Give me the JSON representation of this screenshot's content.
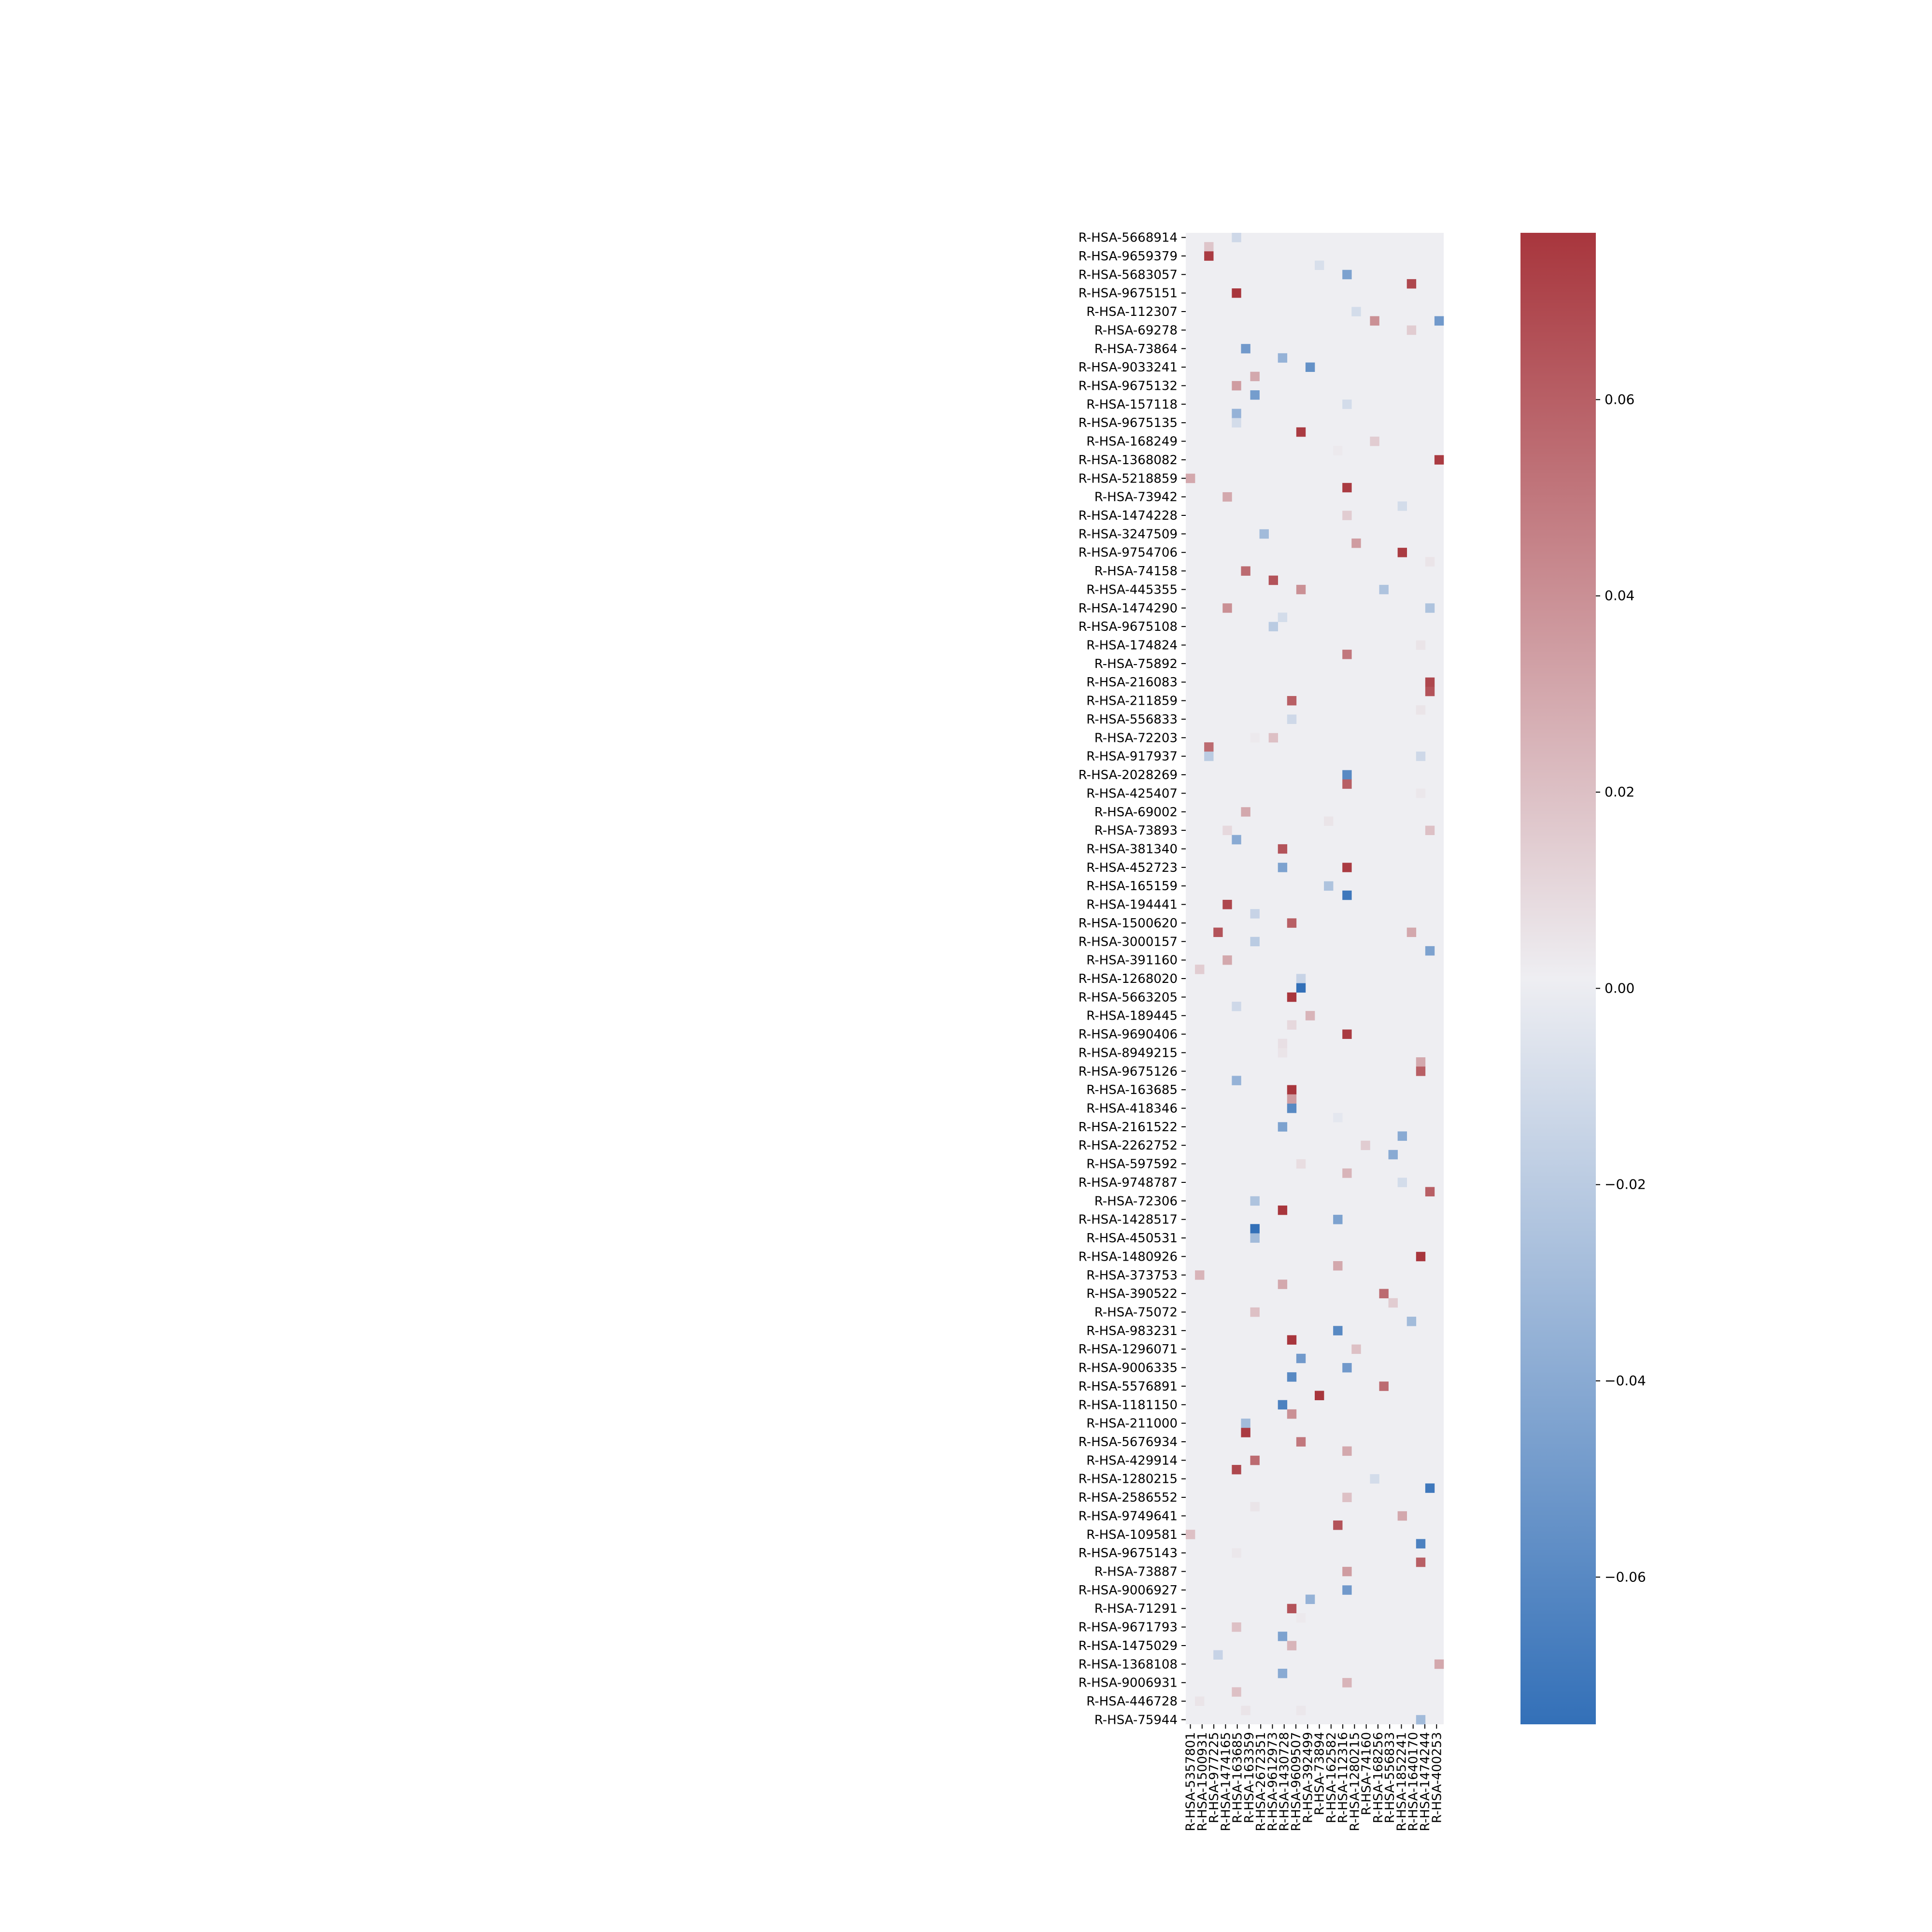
{
  "chart_data": {
    "type": "heatmap",
    "title": "",
    "xlabel": "",
    "ylabel": "",
    "y_tick_labels": [
      "R-HSA-5668914",
      "R-HSA-9659379",
      "R-HSA-5683057",
      "R-HSA-9675151",
      "R-HSA-112307",
      "R-HSA-69278",
      "R-HSA-73864",
      "R-HSA-9033241",
      "R-HSA-9675132",
      "R-HSA-157118",
      "R-HSA-9675135",
      "R-HSA-168249",
      "R-HSA-1368082",
      "R-HSA-5218859",
      "R-HSA-73942",
      "R-HSA-1474228",
      "R-HSA-3247509",
      "R-HSA-9754706",
      "R-HSA-74158",
      "R-HSA-445355",
      "R-HSA-1474290",
      "R-HSA-9675108",
      "R-HSA-174824",
      "R-HSA-75892",
      "R-HSA-216083",
      "R-HSA-211859",
      "R-HSA-556833",
      "R-HSA-72203",
      "R-HSA-917937",
      "R-HSA-2028269",
      "R-HSA-425407",
      "R-HSA-69002",
      "R-HSA-73893",
      "R-HSA-381340",
      "R-HSA-452723",
      "R-HSA-165159",
      "R-HSA-194441",
      "R-HSA-1500620",
      "R-HSA-3000157",
      "R-HSA-391160",
      "R-HSA-1268020",
      "R-HSA-5663205",
      "R-HSA-189445",
      "R-HSA-9690406",
      "R-HSA-8949215",
      "R-HSA-9675126",
      "R-HSA-163685",
      "R-HSA-418346",
      "R-HSA-2161522",
      "R-HSA-2262752",
      "R-HSA-597592",
      "R-HSA-9748787",
      "R-HSA-72306",
      "R-HSA-1428517",
      "R-HSA-450531",
      "R-HSA-1480926",
      "R-HSA-373753",
      "R-HSA-390522",
      "R-HSA-75072",
      "R-HSA-983231",
      "R-HSA-1296071",
      "R-HSA-9006335",
      "R-HSA-5576891",
      "R-HSA-1181150",
      "R-HSA-211000",
      "R-HSA-5676934",
      "R-HSA-429914",
      "R-HSA-1280215",
      "R-HSA-2586552",
      "R-HSA-9749641",
      "R-HSA-109581",
      "R-HSA-9675143",
      "R-HSA-73887",
      "R-HSA-9006927",
      "R-HSA-71291",
      "R-HSA-9671793",
      "R-HSA-1475029",
      "R-HSA-1368108",
      "R-HSA-9006931",
      "R-HSA-446728",
      "R-HSA-75944"
    ],
    "x_tick_labels": [
      "R-HSA-5357801",
      "R-HSA-1500931",
      "R-HSA-977225",
      "R-HSA-1474165",
      "R-HSA-163685",
      "R-HSA-163359",
      "R-HSA-2672351",
      "R-HSA-9612973",
      "R-HSA-1430728",
      "R-HSA-9609507",
      "R-HSA-392499",
      "R-HSA-73894",
      "R-HSA-162582",
      "R-HSA-112316",
      "R-HSA-1280215",
      "R-HSA-74160",
      "R-HSA-168256",
      "R-HSA-556833",
      "R-HSA-1852241",
      "R-HSA-1640170",
      "R-HSA-1474244",
      "R-HSA-400253"
    ],
    "n_rows": 161,
    "n_cols": 28,
    "background_value": 0.001,
    "cells": [
      {
        "r": 0,
        "c": 5,
        "v": -0.012
      },
      {
        "r": 1,
        "c": 2,
        "v": 0.018
      },
      {
        "r": 2,
        "c": 2,
        "v": 0.075
      },
      {
        "r": 3,
        "c": 14,
        "v": -0.008
      },
      {
        "r": 4,
        "c": 17,
        "v": -0.045
      },
      {
        "r": 5,
        "c": 24,
        "v": 0.07
      },
      {
        "r": 6,
        "c": 5,
        "v": 0.078
      },
      {
        "r": 8,
        "c": 18,
        "v": -0.01
      },
      {
        "r": 9,
        "c": 20,
        "v": 0.04
      },
      {
        "r": 9,
        "c": 27,
        "v": -0.05
      },
      {
        "r": 10,
        "c": 24,
        "v": 0.015
      },
      {
        "r": 12,
        "c": 6,
        "v": -0.05
      },
      {
        "r": 13,
        "c": 10,
        "v": -0.035
      },
      {
        "r": 14,
        "c": 13,
        "v": -0.055
      },
      {
        "r": 15,
        "c": 7,
        "v": 0.03
      },
      {
        "r": 16,
        "c": 5,
        "v": 0.035
      },
      {
        "r": 17,
        "c": 7,
        "v": -0.048
      },
      {
        "r": 18,
        "c": 17,
        "v": -0.01
      },
      {
        "r": 19,
        "c": 5,
        "v": -0.035
      },
      {
        "r": 20,
        "c": 5,
        "v": -0.01
      },
      {
        "r": 21,
        "c": 12,
        "v": 0.075
      },
      {
        "r": 22,
        "c": 20,
        "v": 0.015
      },
      {
        "r": 23,
        "c": 16,
        "v": 0.003
      },
      {
        "r": 24,
        "c": 27,
        "v": 0.075
      },
      {
        "r": 26,
        "c": 0,
        "v": 0.03
      },
      {
        "r": 27,
        "c": 17,
        "v": 0.075
      },
      {
        "r": 28,
        "c": 4,
        "v": 0.03
      },
      {
        "r": 29,
        "c": 23,
        "v": -0.01
      },
      {
        "r": 30,
        "c": 17,
        "v": 0.015
      },
      {
        "r": 32,
        "c": 8,
        "v": -0.03
      },
      {
        "r": 33,
        "c": 18,
        "v": 0.035
      },
      {
        "r": 34,
        "c": 23,
        "v": 0.075
      },
      {
        "r": 35,
        "c": 26,
        "v": 0.005
      },
      {
        "r": 36,
        "c": 6,
        "v": 0.055
      },
      {
        "r": 37,
        "c": 9,
        "v": 0.065
      },
      {
        "r": 38,
        "c": 12,
        "v": 0.04
      },
      {
        "r": 38,
        "c": 21,
        "v": -0.025
      },
      {
        "r": 40,
        "c": 4,
        "v": 0.04
      },
      {
        "r": 40,
        "c": 26,
        "v": -0.025
      },
      {
        "r": 41,
        "c": 10,
        "v": -0.01
      },
      {
        "r": 42,
        "c": 9,
        "v": -0.02
      },
      {
        "r": 44,
        "c": 25,
        "v": 0.005
      },
      {
        "r": 45,
        "c": 17,
        "v": 0.05
      },
      {
        "r": 48,
        "c": 26,
        "v": 0.07
      },
      {
        "r": 49,
        "c": 26,
        "v": 0.065
      },
      {
        "r": 50,
        "c": 11,
        "v": 0.06
      },
      {
        "r": 51,
        "c": 25,
        "v": 0.005
      },
      {
        "r": 52,
        "c": 11,
        "v": -0.012
      },
      {
        "r": 54,
        "c": 9,
        "v": 0.02
      },
      {
        "r": 54,
        "c": 7,
        "v": 0.003
      },
      {
        "r": 55,
        "c": 2,
        "v": 0.055
      },
      {
        "r": 56,
        "c": 2,
        "v": -0.02
      },
      {
        "r": 56,
        "c": 25,
        "v": -0.012
      },
      {
        "r": 58,
        "c": 17,
        "v": -0.06
      },
      {
        "r": 59,
        "c": 17,
        "v": 0.06
      },
      {
        "r": 60,
        "c": 25,
        "v": 0.004
      },
      {
        "r": 62,
        "c": 6,
        "v": 0.03
      },
      {
        "r": 63,
        "c": 15,
        "v": 0.005
      },
      {
        "r": 64,
        "c": 4,
        "v": 0.01
      },
      {
        "r": 64,
        "c": 26,
        "v": 0.02
      },
      {
        "r": 65,
        "c": 5,
        "v": -0.04
      },
      {
        "r": 66,
        "c": 10,
        "v": 0.065
      },
      {
        "r": 68,
        "c": 10,
        "v": -0.045
      },
      {
        "r": 68,
        "c": 17,
        "v": 0.075
      },
      {
        "r": 70,
        "c": 15,
        "v": -0.025
      },
      {
        "r": 71,
        "c": 17,
        "v": -0.07
      },
      {
        "r": 72,
        "c": 4,
        "v": 0.07
      },
      {
        "r": 73,
        "c": 7,
        "v": -0.015
      },
      {
        "r": 74,
        "c": 11,
        "v": 0.06
      },
      {
        "r": 75,
        "c": 3,
        "v": 0.065
      },
      {
        "r": 75,
        "c": 24,
        "v": 0.03
      },
      {
        "r": 76,
        "c": 7,
        "v": -0.02
      },
      {
        "r": 77,
        "c": 26,
        "v": -0.045
      },
      {
        "r": 78,
        "c": 4,
        "v": 0.03
      },
      {
        "r": 79,
        "c": 1,
        "v": 0.015
      },
      {
        "r": 80,
        "c": 12,
        "v": -0.015
      },
      {
        "r": 81,
        "c": 12,
        "v": -0.075
      },
      {
        "r": 82,
        "c": 11,
        "v": 0.078
      },
      {
        "r": 83,
        "c": 5,
        "v": -0.012
      },
      {
        "r": 84,
        "c": 13,
        "v": 0.025
      },
      {
        "r": 85,
        "c": 11,
        "v": 0.01
      },
      {
        "r": 86,
        "c": 17,
        "v": 0.075
      },
      {
        "r": 87,
        "c": 10,
        "v": 0.007
      },
      {
        "r": 88,
        "c": 10,
        "v": 0.005
      },
      {
        "r": 89,
        "c": 25,
        "v": 0.03
      },
      {
        "r": 90,
        "c": 25,
        "v": 0.06
      },
      {
        "r": 91,
        "c": 5,
        "v": -0.035
      },
      {
        "r": 92,
        "c": 11,
        "v": 0.078
      },
      {
        "r": 93,
        "c": 11,
        "v": 0.035
      },
      {
        "r": 94,
        "c": 11,
        "v": -0.06
      },
      {
        "r": 95,
        "c": 16,
        "v": -0.003
      },
      {
        "r": 96,
        "c": 10,
        "v": -0.045
      },
      {
        "r": 97,
        "c": 23,
        "v": -0.04
      },
      {
        "r": 98,
        "c": 19,
        "v": 0.015
      },
      {
        "r": 99,
        "c": 22,
        "v": -0.04
      },
      {
        "r": 100,
        "c": 12,
        "v": 0.008
      },
      {
        "r": 101,
        "c": 17,
        "v": 0.025
      },
      {
        "r": 102,
        "c": 23,
        "v": -0.01
      },
      {
        "r": 103,
        "c": 26,
        "v": 0.06
      },
      {
        "r": 104,
        "c": 7,
        "v": -0.025
      },
      {
        "r": 105,
        "c": 10,
        "v": 0.078
      },
      {
        "r": 106,
        "c": 16,
        "v": -0.045
      },
      {
        "r": 107,
        "c": 7,
        "v": -0.075
      },
      {
        "r": 108,
        "c": 7,
        "v": -0.03
      },
      {
        "r": 110,
        "c": 25,
        "v": 0.078
      },
      {
        "r": 111,
        "c": 16,
        "v": 0.03
      },
      {
        "r": 112,
        "c": 1,
        "v": 0.025
      },
      {
        "r": 113,
        "c": 10,
        "v": 0.03
      },
      {
        "r": 114,
        "c": 21,
        "v": 0.055
      },
      {
        "r": 115,
        "c": 22,
        "v": 0.015
      },
      {
        "r": 116,
        "c": 7,
        "v": 0.02
      },
      {
        "r": 117,
        "c": 24,
        "v": -0.03
      },
      {
        "r": 118,
        "c": 16,
        "v": -0.06
      },
      {
        "r": 119,
        "c": 11,
        "v": 0.078
      },
      {
        "r": 120,
        "c": 18,
        "v": 0.02
      },
      {
        "r": 121,
        "c": 12,
        "v": -0.05
      },
      {
        "r": 122,
        "c": 17,
        "v": -0.05
      },
      {
        "r": 123,
        "c": 11,
        "v": -0.06
      },
      {
        "r": 124,
        "c": 21,
        "v": 0.055
      },
      {
        "r": 125,
        "c": 14,
        "v": 0.078
      },
      {
        "r": 126,
        "c": 10,
        "v": -0.065
      },
      {
        "r": 127,
        "c": 11,
        "v": 0.04
      },
      {
        "r": 128,
        "c": 6,
        "v": -0.03
      },
      {
        "r": 129,
        "c": 6,
        "v": 0.075
      },
      {
        "r": 130,
        "c": 12,
        "v": 0.05
      },
      {
        "r": 131,
        "c": 17,
        "v": 0.03
      },
      {
        "r": 132,
        "c": 7,
        "v": 0.055
      },
      {
        "r": 133,
        "c": 5,
        "v": 0.07
      },
      {
        "r": 134,
        "c": 20,
        "v": -0.01
      },
      {
        "r": 135,
        "c": 26,
        "v": -0.07
      },
      {
        "r": 136,
        "c": 17,
        "v": 0.02
      },
      {
        "r": 137,
        "c": 7,
        "v": 0.005
      },
      {
        "r": 138,
        "c": 23,
        "v": 0.03
      },
      {
        "r": 139,
        "c": 16,
        "v": 0.065
      },
      {
        "r": 140,
        "c": 0,
        "v": 0.02
      },
      {
        "r": 141,
        "c": 25,
        "v": -0.065
      },
      {
        "r": 142,
        "c": 5,
        "v": 0.004
      },
      {
        "r": 143,
        "c": 25,
        "v": 0.06
      },
      {
        "r": 144,
        "c": 17,
        "v": 0.035
      },
      {
        "r": 146,
        "c": 17,
        "v": -0.05
      },
      {
        "r": 147,
        "c": 13,
        "v": -0.035
      },
      {
        "r": 148,
        "c": 11,
        "v": 0.065
      },
      {
        "r": 149,
        "c": 12,
        "v": 0.003
      },
      {
        "r": 150,
        "c": 5,
        "v": 0.02
      },
      {
        "r": 151,
        "c": 10,
        "v": -0.045
      },
      {
        "r": 152,
        "c": 11,
        "v": 0.025
      },
      {
        "r": 153,
        "c": 3,
        "v": -0.015
      },
      {
        "r": 154,
        "c": 27,
        "v": 0.03
      },
      {
        "r": 155,
        "c": 10,
        "v": -0.04
      },
      {
        "r": 156,
        "c": 17,
        "v": 0.025
      },
      {
        "r": 157,
        "c": 5,
        "v": 0.02
      },
      {
        "r": 158,
        "c": 1,
        "v": 0.005
      },
      {
        "r": 159,
        "c": 6,
        "v": 0.005
      },
      {
        "r": 159,
        "c": 12,
        "v": 0.004
      },
      {
        "r": 160,
        "c": 25,
        "v": -0.03
      }
    ],
    "colorbar": {
      "colormap": "vlag",
      "vmin": -0.075,
      "vmax": 0.077,
      "ticks": [
        0.06,
        0.04,
        0.02,
        0.0,
        -0.02,
        -0.04,
        -0.06
      ],
      "tick_labels": [
        "0.06",
        "0.04",
        "0.02",
        "0.00",
        "−0.02",
        "−0.04",
        "−0.06"
      ],
      "stops": [
        "#3370b8",
        "#eeeef2",
        "#a8363d"
      ]
    }
  }
}
